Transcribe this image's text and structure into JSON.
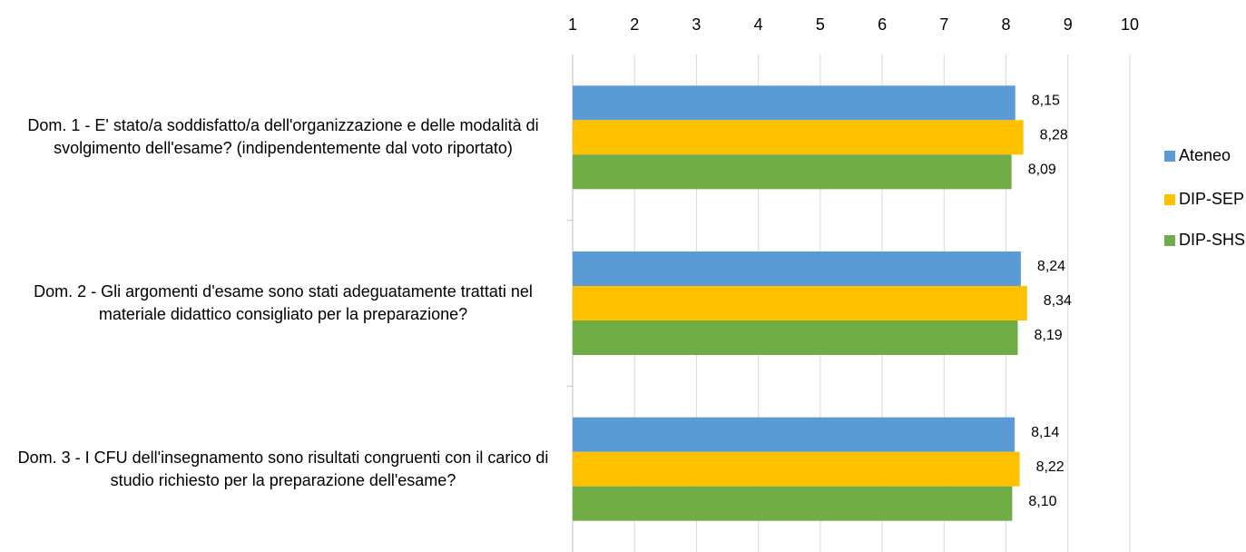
{
  "chart_data": {
    "type": "bar",
    "orientation": "horizontal",
    "categories": [
      "Dom. 1 - E' stato/a soddisfatto/a dell'organizzazione e delle modalità di svolgimento dell'esame? (indipendentemente dal voto riportato)",
      "Dom. 2 - Gli argomenti d'esame sono stati adeguatamente trattati nel materiale didattico consigliato per la preparazione?",
      "Dom. 3 - I CFU dell'insegnamento sono risultati congruenti con il carico di studio richiesto per la preparazione dell'esame?"
    ],
    "series": [
      {
        "name": "Ateneo",
        "color": "#5b9bd5",
        "values": [
          8.15,
          8.24,
          8.14
        ],
        "value_labels": [
          "8,15",
          "8,24",
          "8,14"
        ]
      },
      {
        "name": "DIP-SEP",
        "color": "#ffc000",
        "values": [
          8.28,
          8.34,
          8.22
        ],
        "value_labels": [
          "8,28",
          "8,34",
          "8,22"
        ]
      },
      {
        "name": "DIP-SHS",
        "color": "#70ad47",
        "values": [
          8.09,
          8.19,
          8.1
        ],
        "value_labels": [
          "8,09",
          "8,19",
          "8,10"
        ]
      }
    ],
    "xlim": [
      1,
      10
    ],
    "xticks": [
      1,
      2,
      3,
      4,
      5,
      6,
      7,
      8,
      9,
      10
    ],
    "grid": true,
    "legend": "right"
  }
}
